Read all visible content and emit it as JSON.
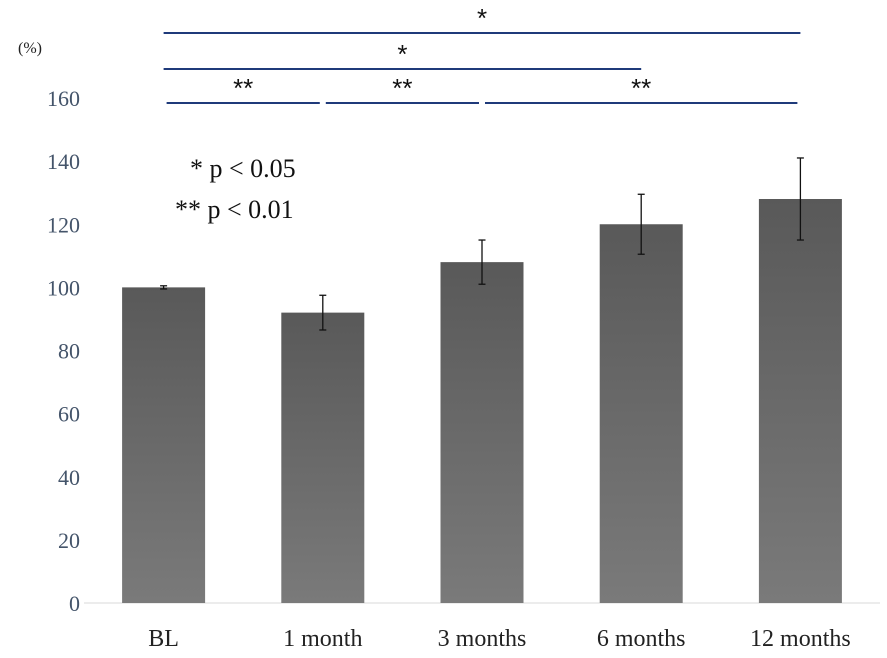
{
  "chart_data": {
    "type": "bar",
    "categories": [
      "BL",
      "1 month",
      "3 months",
      "6 months",
      "12 months"
    ],
    "values": [
      100,
      92,
      108,
      120,
      128
    ],
    "error": [
      0.5,
      5.5,
      7,
      9.5,
      13
    ],
    "ylim": [
      0,
      160
    ],
    "yticks": [
      0,
      20,
      40,
      60,
      80,
      100,
      120,
      140,
      160
    ],
    "ylabel": "(%)",
    "xlabel": "",
    "title": "",
    "legend": [
      "* p < 0.05",
      "** p < 0.01"
    ],
    "significance": [
      {
        "from": 0,
        "to": 4,
        "label": "*"
      },
      {
        "from": 0,
        "to": 3,
        "label": "*"
      },
      {
        "from": 0,
        "to": 1,
        "label": "**"
      },
      {
        "from": 1,
        "to": 2,
        "label": "**"
      },
      {
        "from": 2,
        "to": 4,
        "label": "**"
      }
    ],
    "colors": {
      "bar_top": "#595959",
      "bar_bottom": "#7a7a7a",
      "bracket": "#1f3a7a"
    }
  }
}
